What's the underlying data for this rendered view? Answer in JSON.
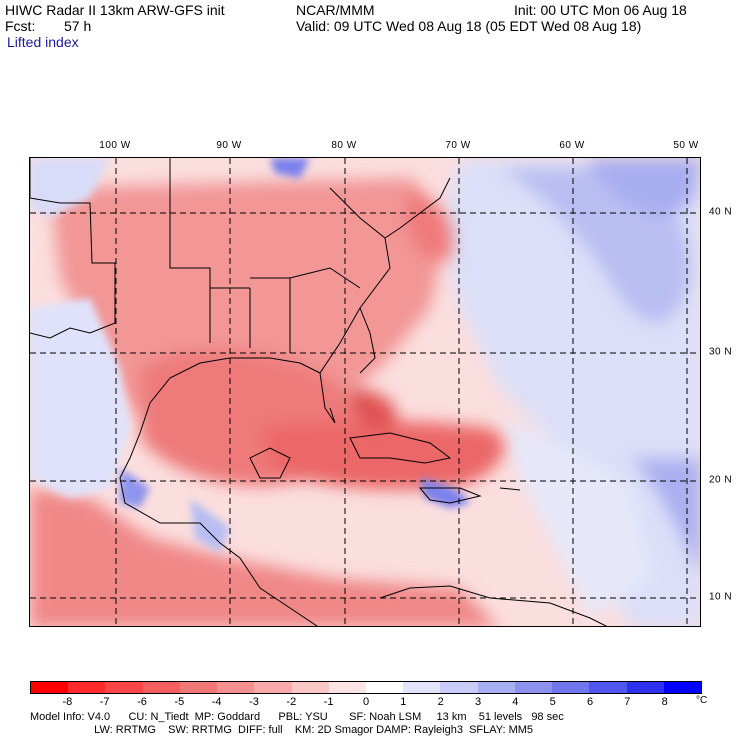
{
  "header": {
    "title": "HIWC Radar II 13km ARW-GFS init",
    "forecast_label": "Fcst:",
    "forecast_value": "57 h",
    "product": "Lifted index",
    "center": "NCAR/MMM",
    "init": "Init: 00 UTC Mon 06 Aug 18",
    "valid": "Valid: 09 UTC Wed 08 Aug 18 (05 EDT Wed 08 Aug 18)"
  },
  "map": {
    "lon_labels": [
      "100 W",
      "90 W",
      "80 W",
      "70 W",
      "60 W",
      "50 W"
    ],
    "lat_labels": [
      "40 N",
      "30 N",
      "20 N",
      "10 N"
    ]
  },
  "colorbar": {
    "ticks": [
      "-8",
      "-7",
      "-6",
      "-5",
      "-4",
      "-3",
      "-2",
      "-1",
      "0",
      "1",
      "2",
      "3",
      "4",
      "5",
      "6",
      "7",
      "8"
    ],
    "unit": "°C",
    "colors": [
      "#ff0000",
      "#ff2a2a",
      "#fa4646",
      "#f46060",
      "#f07878",
      "#f49090",
      "#f8aaaa",
      "#fbc8c8",
      "#fde4e4",
      "#ffffff",
      "#e2e4fb",
      "#c8ccf6",
      "#a8aef2",
      "#8c92ee",
      "#7076ec",
      "#5056ee",
      "#2e32f0",
      "#0000ff"
    ]
  },
  "footer": {
    "line1": "Model Info: V4.0      CU: N_Tiedt  MP: Goddard      PBL: YSU       SF: Noah LSM     13 km    51 levels   98 sec",
    "line2": "                     LW: RRTMG    SW: RRTMG  DIFF: full    KM: 2D Smagor DAMP: Rayleigh3  SFLAY: MM5"
  }
}
